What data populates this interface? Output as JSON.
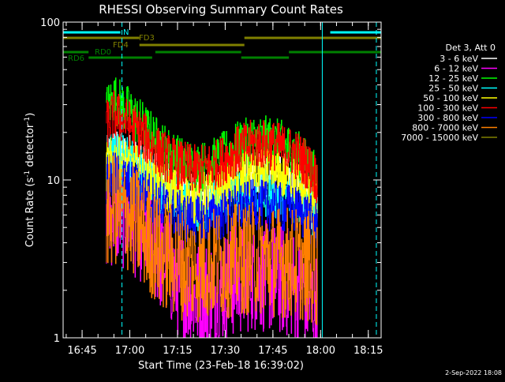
{
  "chart_data": {
    "type": "line",
    "title": "RHESSI Observing Summary Count Rates",
    "xlabel": "Start Time (23-Feb-18 16:39:02)",
    "ylabel_main": "Count Rate (s",
    "ylabel_sup1": "-1",
    "ylabel_mid": " detector",
    "ylabel_sup2": "-1",
    "ylabel_end": ")",
    "y_scale": "log",
    "ylim": [
      1,
      100
    ],
    "y_ticks": [
      {
        "value": 1,
        "label": "1"
      },
      {
        "value": 10,
        "label": "10"
      },
      {
        "value": 100,
        "label": "100"
      }
    ],
    "x_unit": "minutes since 16:39:02",
    "xlim": [
      0,
      100
    ],
    "x_ticks": [
      {
        "value": 5.97,
        "label": "16:45"
      },
      {
        "value": 20.97,
        "label": "17:00"
      },
      {
        "value": 35.97,
        "label": "17:15"
      },
      {
        "value": 50.97,
        "label": "17:30"
      },
      {
        "value": 65.97,
        "label": "17:45"
      },
      {
        "value": 80.97,
        "label": "18:00"
      },
      {
        "value": 95.97,
        "label": "18:15"
      }
    ],
    "legend_header": "Det 3, Att 0",
    "legend_position": "right",
    "series": [
      {
        "name": "3 - 6 keV",
        "color": "#ffffff",
        "values": [
          [
            13.5,
            13
          ],
          [
            16,
            15
          ],
          [
            20,
            14
          ],
          [
            25,
            13
          ],
          [
            30,
            11
          ],
          [
            36,
            9
          ],
          [
            42,
            7.5
          ],
          [
            48,
            8
          ],
          [
            54,
            10.5
          ],
          [
            60,
            11.5
          ],
          [
            66,
            11
          ],
          [
            72,
            10
          ],
          [
            76,
            8.5
          ],
          [
            80,
            6
          ]
        ]
      },
      {
        "name": "6 - 12 keV",
        "color": "#ff00ff",
        "values": [
          [
            13.5,
            6
          ],
          [
            16,
            6.5
          ],
          [
            20,
            6
          ],
          [
            25,
            5
          ],
          [
            30,
            3.5
          ],
          [
            36,
            2.3
          ],
          [
            42,
            1.8
          ],
          [
            48,
            2
          ],
          [
            54,
            2.3
          ],
          [
            60,
            2.5
          ],
          [
            66,
            2.4
          ],
          [
            72,
            2.2
          ],
          [
            76,
            1.9
          ],
          [
            80,
            1.5
          ]
        ]
      },
      {
        "name": "12 - 25 keV",
        "color": "#00ff00",
        "values": [
          [
            13.5,
            28
          ],
          [
            16,
            33
          ],
          [
            20,
            28
          ],
          [
            25,
            22
          ],
          [
            30,
            17
          ],
          [
            36,
            13.5
          ],
          [
            42,
            12
          ],
          [
            48,
            13
          ],
          [
            54,
            16
          ],
          [
            60,
            18
          ],
          [
            66,
            17.5
          ],
          [
            72,
            15.5
          ],
          [
            76,
            13
          ],
          [
            80,
            10
          ]
        ]
      },
      {
        "name": "25 - 50 keV",
        "color": "#00ffff",
        "values": [
          [
            13.5,
            14
          ],
          [
            16,
            15
          ],
          [
            20,
            13
          ],
          [
            25,
            11
          ],
          [
            30,
            9
          ],
          [
            36,
            7.5
          ],
          [
            42,
            6.5
          ],
          [
            48,
            7
          ],
          [
            54,
            8
          ],
          [
            60,
            8.5
          ],
          [
            66,
            8.2
          ],
          [
            72,
            7.8
          ],
          [
            76,
            7
          ],
          [
            80,
            5.5
          ]
        ]
      },
      {
        "name": "50 - 100 keV",
        "color": "#ffff00",
        "values": [
          [
            13.5,
            12
          ],
          [
            16,
            13.5
          ],
          [
            20,
            12.5
          ],
          [
            25,
            11
          ],
          [
            30,
            9.5
          ],
          [
            36,
            8
          ],
          [
            42,
            7.5
          ],
          [
            48,
            8.5
          ],
          [
            54,
            10
          ],
          [
            60,
            11
          ],
          [
            66,
            10.8
          ],
          [
            72,
            10
          ],
          [
            76,
            8.5
          ],
          [
            80,
            6.5
          ]
        ]
      },
      {
        "name": "100 - 300 keV",
        "color": "#ff0000",
        "values": [
          [
            13.5,
            22
          ],
          [
            16,
            26
          ],
          [
            20,
            23
          ],
          [
            25,
            19
          ],
          [
            30,
            15
          ],
          [
            36,
            12.5
          ],
          [
            42,
            11.5
          ],
          [
            48,
            12.5
          ],
          [
            54,
            15
          ],
          [
            60,
            17
          ],
          [
            66,
            16.5
          ],
          [
            72,
            15
          ],
          [
            76,
            13
          ],
          [
            80,
            10
          ]
        ]
      },
      {
        "name": "300 - 800 keV",
        "color": "#0000ff",
        "values": [
          [
            13.5,
            9.5
          ],
          [
            16,
            10.5
          ],
          [
            20,
            9.5
          ],
          [
            25,
            8.5
          ],
          [
            30,
            7
          ],
          [
            36,
            6
          ],
          [
            42,
            5.5
          ],
          [
            48,
            5.8
          ],
          [
            54,
            6.5
          ],
          [
            60,
            7
          ],
          [
            66,
            6.8
          ],
          [
            72,
            6.5
          ],
          [
            76,
            6
          ],
          [
            80,
            5
          ]
        ]
      },
      {
        "name": "800 - 7000 keV",
        "color": "#ff8000",
        "values": [
          [
            13.5,
            6
          ],
          [
            16,
            6.5
          ],
          [
            20,
            6
          ],
          [
            25,
            4.8
          ],
          [
            30,
            3.5
          ],
          [
            36,
            3
          ],
          [
            42,
            2.8
          ],
          [
            48,
            3
          ],
          [
            54,
            3.1
          ],
          [
            60,
            3.2
          ],
          [
            66,
            3.1
          ],
          [
            72,
            3
          ],
          [
            76,
            2.9
          ],
          [
            80,
            2.6
          ]
        ]
      },
      {
        "name": "7000 - 15000 keV",
        "color": "#808000",
        "values": []
      }
    ],
    "state_bars": [
      {
        "label": "N",
        "color": "#00ffff",
        "level": 0,
        "segments": [
          [
            0,
            18
          ],
          [
            84,
            100
          ]
        ]
      },
      {
        "label": "FD3",
        "color": "#808000",
        "level": 1,
        "segments": [
          [
            0,
            24
          ],
          [
            57,
            100
          ]
        ]
      },
      {
        "label": "FD4",
        "color": "#808000",
        "level": 2,
        "segments": [
          [
            24,
            57
          ]
        ]
      },
      {
        "label": "RD0",
        "color": "#008000",
        "level": 3,
        "segments": [
          [
            0,
            8
          ],
          [
            29,
            56
          ],
          [
            71,
            100
          ]
        ]
      },
      {
        "label": "RD6",
        "color": "#008000",
        "level": 4,
        "segments": [
          [
            8,
            28
          ],
          [
            56,
            71
          ]
        ]
      }
    ],
    "vlines": [
      {
        "x": 18.5,
        "color": "#00ffff",
        "style": "dashed"
      },
      {
        "x": 81.5,
        "color": "#00ffff",
        "style": "solid"
      },
      {
        "x": 98.5,
        "color": "#00ffff",
        "style": "dashed"
      }
    ]
  },
  "footer": {
    "date": "2-Sep-2022 18:08"
  }
}
